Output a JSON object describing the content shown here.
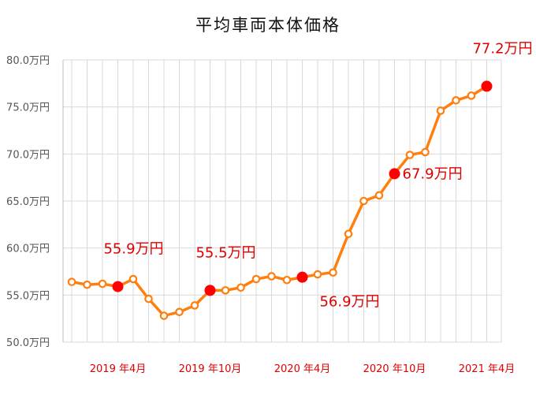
{
  "chart_data": {
    "type": "line",
    "title": "平均車両本体価格",
    "xlabel": "",
    "ylabel": "",
    "y_unit_suffix": "万円",
    "ylim": [
      50,
      80
    ],
    "y_ticks": [
      "80.0万円",
      "75.0万円",
      "70.0万円",
      "65.0万円",
      "60.0万円",
      "55.0万円",
      "50.0万円"
    ],
    "x_tick_labels": [
      {
        "index": 3,
        "label": "2019 年4月"
      },
      {
        "index": 9,
        "label": "2019 年10月"
      },
      {
        "index": 15,
        "label": "2020 年4月"
      },
      {
        "index": 21,
        "label": "2020 年10月"
      },
      {
        "index": 27,
        "label": "2021 年4月"
      }
    ],
    "grid": true,
    "colors": {
      "line": "#ff7f0e",
      "highlight": "#ff0000",
      "label": "#e00000",
      "grid": "#d9d9d9"
    },
    "series": [
      {
        "values": [
          56.4,
          56.1,
          56.2,
          55.9,
          56.7,
          54.6,
          52.8,
          53.2,
          53.9,
          55.5,
          55.5,
          55.8,
          56.7,
          57.0,
          56.6,
          56.9,
          57.2,
          57.4,
          61.5,
          65.0,
          65.6,
          67.9,
          69.9,
          70.2,
          74.6,
          75.7,
          76.2,
          77.2
        ]
      }
    ],
    "highlights": [
      {
        "index": 3,
        "label": "55.9万円",
        "position": "above"
      },
      {
        "index": 9,
        "label": "55.5万円",
        "position": "above"
      },
      {
        "index": 15,
        "label": "56.9万円",
        "position": "below-right"
      },
      {
        "index": 21,
        "label": "67.9万円",
        "position": "right"
      },
      {
        "index": 27,
        "label": "77.2万円",
        "position": "above"
      }
    ]
  }
}
